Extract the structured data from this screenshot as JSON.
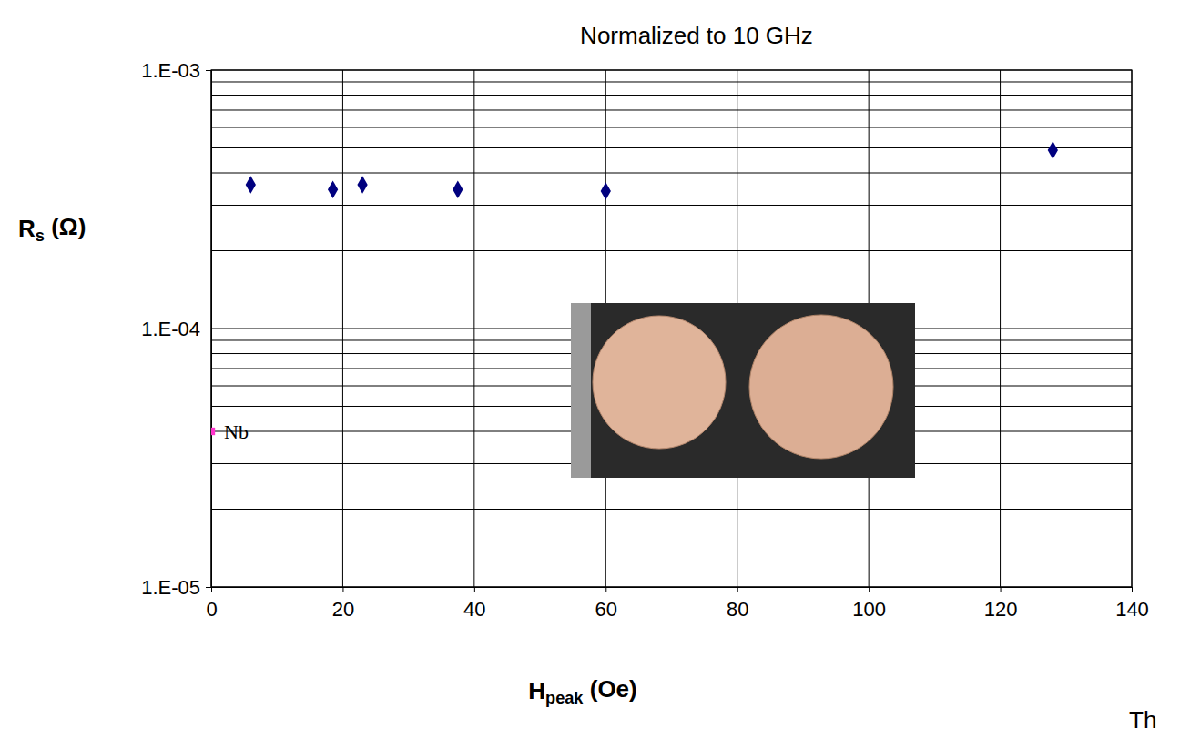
{
  "chart_data": {
    "type": "scatter",
    "title": "Normalized to 10 GHz",
    "x_label": "Hpeak (Oe)",
    "y_label": "Rs (Ω)",
    "annotation": "Th",
    "log": "y",
    "grid": true,
    "xlim": [
      0,
      140
    ],
    "xticks": [
      0,
      20,
      40,
      60,
      80,
      100,
      120,
      140
    ],
    "ylim": [
      1e-05,
      0.001
    ],
    "yticks": [
      {
        "value": 1e-05,
        "label": "1.E-05"
      },
      {
        "value": 0.0001,
        "label": "1.E-04"
      },
      {
        "value": 0.001,
        "label": "1.E-03"
      }
    ],
    "yminorticks": [
      2e-05,
      3e-05,
      4e-05,
      5e-05,
      6e-05,
      7e-05,
      8e-05,
      9e-05,
      0.0002,
      0.0003,
      0.0004,
      0.0005,
      0.0006,
      0.0007,
      0.0008,
      0.0009
    ],
    "series": [
      {
        "color": "#00007f",
        "marker": "diamond",
        "x": [
          6,
          18.5,
          23,
          37.5,
          60,
          128
        ],
        "values": [
          0.00036,
          0.000345,
          0.00036,
          0.000345,
          0.00034,
          0.00049
        ]
      },
      {
        "name": "Nb",
        "color": "#ff33cc",
        "marker": "square",
        "x": [
          0
        ],
        "values": [
          4e-05
        ]
      }
    ]
  }
}
